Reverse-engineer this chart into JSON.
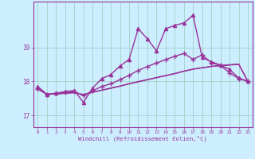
{
  "xlabel": "Windchill (Refroidissement éolien,°C)",
  "background_color": "#cceeff",
  "grid_color": "#99ccbb",
  "line_color": "#993399",
  "x_ticks": [
    0,
    1,
    2,
    3,
    4,
    5,
    6,
    7,
    8,
    9,
    10,
    11,
    12,
    13,
    14,
    15,
    16,
    17,
    18,
    19,
    20,
    21,
    22,
    23
  ],
  "y_ticks": [
    17,
    18,
    19
  ],
  "xlim": [
    -0.5,
    23.5
  ],
  "ylim": [
    16.65,
    20.35
  ],
  "series": [
    {
      "x": [
        0,
        1,
        2,
        3,
        4,
        5,
        6,
        7,
        8,
        9,
        10,
        11,
        12,
        13,
        14,
        15,
        16,
        17,
        18,
        19,
        20,
        21,
        22,
        23
      ],
      "y": [
        17.85,
        17.62,
        17.65,
        17.7,
        17.73,
        17.38,
        17.8,
        18.08,
        18.2,
        18.45,
        18.65,
        19.55,
        19.25,
        18.9,
        19.55,
        19.65,
        19.72,
        19.95,
        18.7,
        18.58,
        18.48,
        18.35,
        18.1,
        18.0
      ],
      "marker": "^",
      "linewidth": 1.0,
      "markersize": 3
    },
    {
      "x": [
        0,
        1,
        2,
        3,
        4,
        5,
        6,
        7,
        8,
        9,
        10,
        11,
        12,
        13,
        14,
        15,
        16,
        17,
        18,
        19,
        20,
        21,
        22,
        23
      ],
      "y": [
        17.78,
        17.62,
        17.65,
        17.67,
        17.7,
        17.58,
        17.72,
        17.85,
        17.93,
        18.05,
        18.18,
        18.32,
        18.44,
        18.54,
        18.64,
        18.74,
        18.82,
        18.65,
        18.78,
        18.55,
        18.47,
        18.25,
        18.08,
        18.0
      ],
      "marker": "+",
      "linewidth": 1.0,
      "markersize": 4
    },
    {
      "x": [
        0,
        1,
        2,
        3,
        4,
        5,
        6,
        7,
        8,
        9,
        10,
        11,
        12,
        13,
        14,
        15,
        16,
        17,
        18,
        19,
        20,
        21,
        22,
        23
      ],
      "y": [
        17.78,
        17.62,
        17.63,
        17.65,
        17.67,
        17.61,
        17.68,
        17.74,
        17.8,
        17.86,
        17.93,
        17.99,
        18.05,
        18.11,
        18.17,
        18.23,
        18.3,
        18.36,
        18.4,
        18.44,
        18.46,
        18.48,
        18.5,
        18.0
      ],
      "marker": null,
      "linewidth": 1.0,
      "markersize": 0
    },
    {
      "x": [
        0,
        1,
        2,
        3,
        4,
        5,
        6,
        7,
        8,
        9,
        10,
        11,
        12,
        13,
        14,
        15,
        16,
        17,
        18,
        19,
        20,
        21,
        22,
        23
      ],
      "y": [
        17.78,
        17.62,
        17.63,
        17.65,
        17.67,
        17.61,
        17.68,
        17.74,
        17.8,
        17.86,
        17.93,
        17.99,
        18.05,
        18.11,
        18.17,
        18.23,
        18.3,
        18.36,
        18.4,
        18.44,
        18.47,
        18.49,
        18.51,
        18.0
      ],
      "marker": null,
      "linewidth": 1.0,
      "markersize": 0
    }
  ]
}
